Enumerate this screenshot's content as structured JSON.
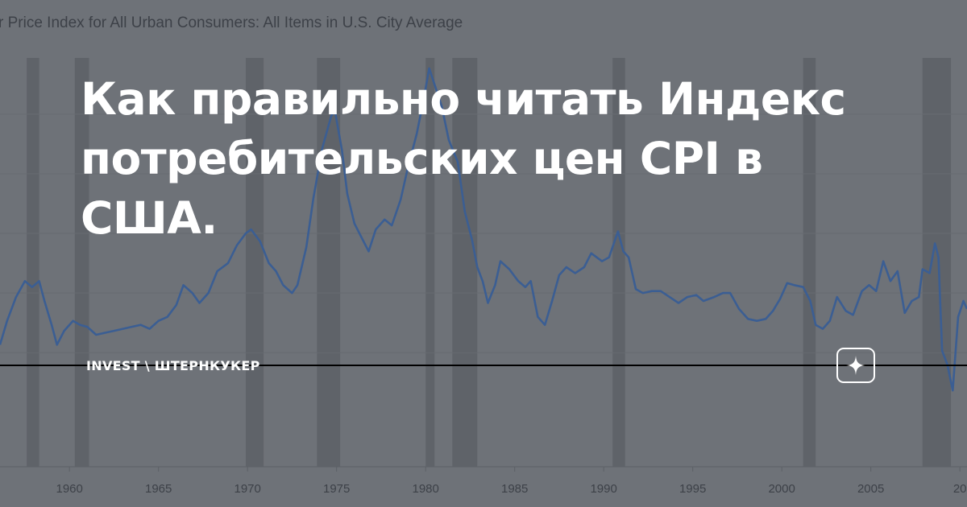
{
  "header": {
    "chart_title": "r Price Index for All Urban Consumers: All Items in U.S. City Average"
  },
  "article": {
    "headline_lines": [
      "Как правильно читать Индекс",
      "потребительских цен CPI в",
      "США."
    ],
    "brand": "INVEST \\ ШТЕРНКУКЕР",
    "badge_icon": "sparkle-icon"
  },
  "colors": {
    "background": "#6e7278",
    "line": "#3b5e93",
    "recession": "#5f6369",
    "axis_text": "#3d4148",
    "headline": "#ffffff",
    "baseline": "#000000"
  },
  "chart_data": {
    "type": "line",
    "title": "r Price Index for All Urban Consumers: All Items in U.S. City Average",
    "xlabel": "",
    "ylabel": "",
    "grid": true,
    "x_ticks": [
      "1960",
      "1965",
      "1970",
      "1975",
      "1980",
      "1985",
      "1990",
      "1995",
      "2000",
      "2005",
      "20"
    ],
    "x_range": [
      1956.1,
      2010.4
    ],
    "y_range": [
      -2.5,
      14.3
    ],
    "recessions": [
      [
        1957.6,
        1958.3
      ],
      [
        1960.3,
        1961.1
      ],
      [
        1969.9,
        1970.9
      ],
      [
        1973.9,
        1975.2
      ],
      [
        1980.0,
        1980.5
      ],
      [
        1981.5,
        1982.9
      ],
      [
        1990.5,
        1991.2
      ],
      [
        2001.2,
        2001.9
      ],
      [
        2007.9,
        2009.5
      ]
    ],
    "series": [
      {
        "values": [
          [
            1956.1,
            0.4
          ],
          [
            1956.5,
            1.6
          ],
          [
            1957.0,
            2.8
          ],
          [
            1957.5,
            3.6
          ],
          [
            1957.9,
            3.3
          ],
          [
            1958.3,
            3.6
          ],
          [
            1958.6,
            2.6
          ],
          [
            1959.0,
            1.4
          ],
          [
            1959.3,
            0.4
          ],
          [
            1959.7,
            1.1
          ],
          [
            1960.2,
            1.6
          ],
          [
            1960.6,
            1.4
          ],
          [
            1961.0,
            1.3
          ],
          [
            1961.5,
            0.9
          ],
          [
            1962.0,
            1.0
          ],
          [
            1962.5,
            1.1
          ],
          [
            1963.0,
            1.2
          ],
          [
            1963.5,
            1.3
          ],
          [
            1964.0,
            1.4
          ],
          [
            1964.5,
            1.2
          ],
          [
            1965.0,
            1.6
          ],
          [
            1965.5,
            1.8
          ],
          [
            1966.0,
            2.4
          ],
          [
            1966.4,
            3.4
          ],
          [
            1966.9,
            3.0
          ],
          [
            1967.3,
            2.5
          ],
          [
            1967.8,
            3.0
          ],
          [
            1968.3,
            4.1
          ],
          [
            1968.9,
            4.5
          ],
          [
            1969.4,
            5.4
          ],
          [
            1969.9,
            6.0
          ],
          [
            1970.2,
            6.2
          ],
          [
            1970.7,
            5.6
          ],
          [
            1971.2,
            4.5
          ],
          [
            1971.6,
            4.1
          ],
          [
            1972.0,
            3.4
          ],
          [
            1972.5,
            3.0
          ],
          [
            1972.8,
            3.4
          ],
          [
            1973.3,
            5.3
          ],
          [
            1973.7,
            7.8
          ],
          [
            1974.2,
            10.3
          ],
          [
            1974.7,
            11.9
          ],
          [
            1974.9,
            12.2
          ],
          [
            1975.3,
            10.2
          ],
          [
            1975.6,
            8.0
          ],
          [
            1976.0,
            6.5
          ],
          [
            1976.4,
            5.8
          ],
          [
            1976.8,
            5.1
          ],
          [
            1977.2,
            6.2
          ],
          [
            1977.7,
            6.7
          ],
          [
            1978.1,
            6.4
          ],
          [
            1978.6,
            7.7
          ],
          [
            1979.0,
            9.3
          ],
          [
            1979.5,
            11.0
          ],
          [
            1979.9,
            12.8
          ],
          [
            1980.2,
            14.3
          ],
          [
            1980.5,
            13.5
          ],
          [
            1980.9,
            12.4
          ],
          [
            1981.3,
            10.7
          ],
          [
            1981.8,
            9.6
          ],
          [
            1982.2,
            7.1
          ],
          [
            1982.6,
            5.7
          ],
          [
            1982.9,
            4.3
          ],
          [
            1983.2,
            3.6
          ],
          [
            1983.5,
            2.5
          ],
          [
            1983.9,
            3.4
          ],
          [
            1984.2,
            4.6
          ],
          [
            1984.7,
            4.2
          ],
          [
            1985.2,
            3.6
          ],
          [
            1985.6,
            3.3
          ],
          [
            1985.9,
            3.6
          ],
          [
            1986.3,
            1.8
          ],
          [
            1986.7,
            1.4
          ],
          [
            1987.1,
            2.6
          ],
          [
            1987.5,
            3.9
          ],
          [
            1987.9,
            4.3
          ],
          [
            1988.4,
            4.0
          ],
          [
            1988.9,
            4.3
          ],
          [
            1989.3,
            5.0
          ],
          [
            1989.9,
            4.6
          ],
          [
            1990.3,
            4.8
          ],
          [
            1990.8,
            6.1
          ],
          [
            1991.1,
            5.1
          ],
          [
            1991.4,
            4.8
          ],
          [
            1991.8,
            3.2
          ],
          [
            1992.2,
            3.0
          ],
          [
            1992.7,
            3.1
          ],
          [
            1993.2,
            3.1
          ],
          [
            1993.7,
            2.8
          ],
          [
            1994.2,
            2.5
          ],
          [
            1994.7,
            2.8
          ],
          [
            1995.2,
            2.9
          ],
          [
            1995.6,
            2.6
          ],
          [
            1996.2,
            2.8
          ],
          [
            1996.7,
            3.0
          ],
          [
            1997.1,
            3.0
          ],
          [
            1997.6,
            2.2
          ],
          [
            1998.1,
            1.7
          ],
          [
            1998.6,
            1.6
          ],
          [
            1999.1,
            1.7
          ],
          [
            1999.5,
            2.1
          ],
          [
            1999.9,
            2.7
          ],
          [
            2000.3,
            3.5
          ],
          [
            2000.7,
            3.4
          ],
          [
            2001.2,
            3.3
          ],
          [
            2001.6,
            2.6
          ],
          [
            2001.9,
            1.4
          ],
          [
            2002.3,
            1.2
          ],
          [
            2002.7,
            1.6
          ],
          [
            2003.1,
            2.8
          ],
          [
            2003.6,
            2.1
          ],
          [
            2004.0,
            1.9
          ],
          [
            2004.5,
            3.1
          ],
          [
            2004.9,
            3.4
          ],
          [
            2005.3,
            3.1
          ],
          [
            2005.7,
            4.6
          ],
          [
            2006.1,
            3.6
          ],
          [
            2006.5,
            4.1
          ],
          [
            2006.9,
            2.0
          ],
          [
            2007.3,
            2.6
          ],
          [
            2007.7,
            2.8
          ],
          [
            2007.9,
            4.2
          ],
          [
            2008.3,
            4.0
          ],
          [
            2008.6,
            5.5
          ],
          [
            2008.8,
            4.8
          ],
          [
            2009.0,
            0.1
          ],
          [
            2009.3,
            -0.6
          ],
          [
            2009.6,
            -1.9
          ],
          [
            2009.9,
            1.8
          ],
          [
            2010.2,
            2.6
          ],
          [
            2010.4,
            2.2
          ]
        ]
      }
    ]
  }
}
